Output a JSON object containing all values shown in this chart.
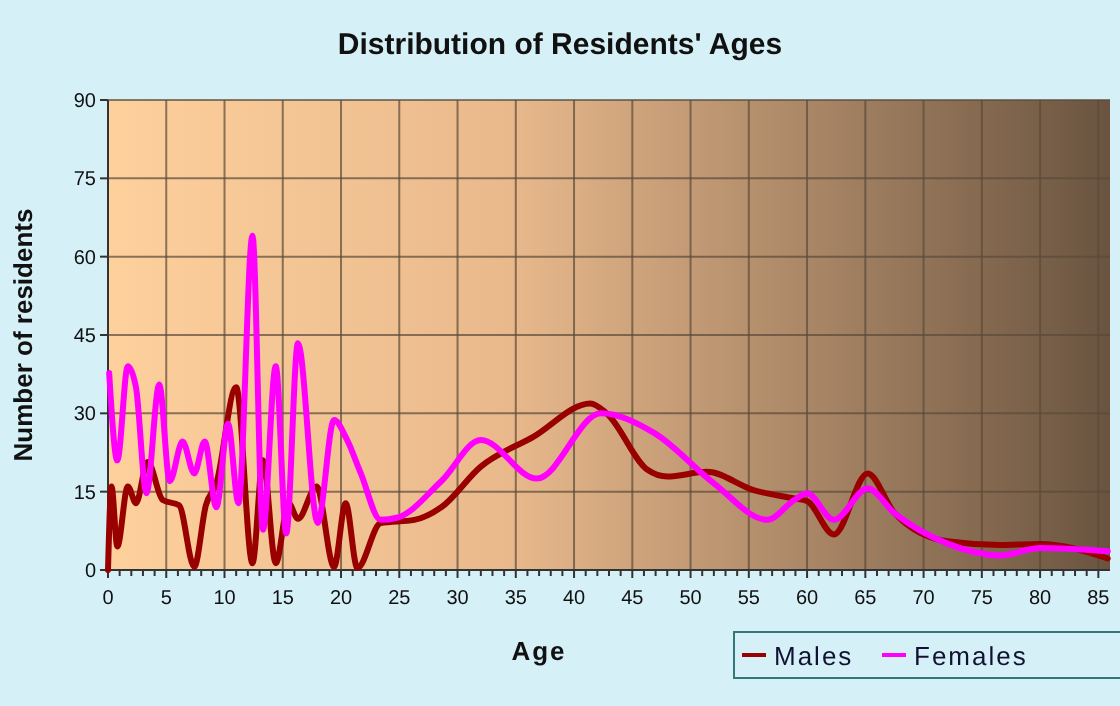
{
  "chart_data": {
    "type": "line",
    "title": "Distribution of Residents' Ages",
    "xlabel": "Age",
    "ylabel": "Number of residents",
    "xlim": [
      0,
      86
    ],
    "xticks": [
      0,
      {
        "value": 1,
        "label": null
      },
      {
        "value": 2,
        "label": null
      },
      {
        "value": 3,
        "label": null
      },
      {
        "value": 4,
        "label": null
      },
      5,
      {
        "value": 6,
        "label": null
      },
      {
        "value": 7,
        "label": null
      },
      {
        "value": 8,
        "label": null
      },
      {
        "value": 9,
        "label": null
      },
      10,
      {
        "value": 11,
        "label": null
      },
      {
        "value": 12,
        "label": null
      },
      {
        "value": 13,
        "label": null
      },
      {
        "value": 14,
        "label": null
      },
      15,
      {
        "value": 16,
        "label": null
      },
      {
        "value": 17,
        "label": null
      },
      {
        "value": 18,
        "label": null
      },
      {
        "value": 19,
        "label": null
      },
      20,
      {
        "value": 21,
        "label": null
      },
      {
        "value": 22,
        "label": null
      },
      {
        "value": 23,
        "label": null
      },
      {
        "value": 24,
        "label": null
      },
      25,
      {
        "value": 26,
        "label": null
      },
      {
        "value": 27,
        "label": null
      },
      {
        "value": 28,
        "label": null
      },
      {
        "value": 29,
        "label": null
      },
      30,
      {
        "value": 31,
        "label": null
      },
      {
        "value": 32,
        "label": null
      },
      {
        "value": 33,
        "label": null
      },
      {
        "value": 34,
        "label": null
      },
      35,
      {
        "value": 36,
        "label": null
      },
      {
        "value": 37,
        "label": null
      },
      {
        "value": 38,
        "label": null
      },
      {
        "value": 39,
        "label": null
      },
      40,
      {
        "value": 41,
        "label": null
      },
      {
        "value": 42,
        "label": null
      },
      {
        "value": 43,
        "label": null
      },
      {
        "value": 44,
        "label": null
      },
      45,
      {
        "value": 46,
        "label": null
      },
      {
        "value": 47,
        "label": null
      },
      {
        "value": 48,
        "label": null
      },
      {
        "value": 49,
        "label": null
      },
      50,
      {
        "value": 51,
        "label": null
      },
      {
        "value": 52,
        "label": null
      },
      {
        "value": 53,
        "label": null
      },
      {
        "value": 54,
        "label": null
      },
      55,
      {
        "value": 56,
        "label": null
      },
      {
        "value": 57,
        "label": null
      },
      {
        "value": 58,
        "label": null
      },
      {
        "value": 59,
        "label": null
      },
      60,
      {
        "value": 61,
        "label": null
      },
      {
        "value": 62,
        "label": null
      },
      {
        "value": 63,
        "label": null
      },
      {
        "value": 64,
        "label": null
      },
      65,
      {
        "value": 66,
        "label": null
      },
      {
        "value": 67,
        "label": null
      },
      {
        "value": 68,
        "label": null
      },
      {
        "value": 69,
        "label": null
      },
      70,
      {
        "value": 71,
        "label": null
      },
      {
        "value": 72,
        "label": null
      },
      {
        "value": 73,
        "label": null
      },
      {
        "value": 74,
        "label": null
      },
      75,
      {
        "value": 76,
        "label": null
      },
      {
        "value": 77,
        "label": null
      },
      {
        "value": 78,
        "label": null
      },
      {
        "value": 79,
        "label": null
      },
      80,
      {
        "value": 81,
        "label": null
      },
      {
        "value": 82,
        "label": null
      },
      {
        "value": 83,
        "label": null
      },
      {
        "value": 84,
        "label": null
      },
      85
    ],
    "ylim": [
      0,
      90
    ],
    "yticks": [
      0,
      15,
      30,
      45,
      60,
      75,
      90
    ],
    "grid": true,
    "legend": "bottom right",
    "marker": "none",
    "line_style": "solid",
    "series": [
      {
        "name": "Males",
        "color": "#990000",
        "x": [
          0,
          0.3,
          0.8,
          1.7,
          2.4,
          3.4,
          4.7,
          6.1,
          7.4,
          8.4,
          9.3,
          11,
          12.4,
          13.3,
          14.4,
          15.5,
          16.3,
          17.9,
          19.4,
          20.4,
          21.4,
          23.4,
          26.3,
          28.6,
          32,
          36.5,
          41.4,
          42.8,
          46.3,
          48,
          51.4,
          55.4,
          58.9,
          60,
          62.3,
          65.2,
          67.5,
          72,
          76.6,
          80,
          85.8
        ],
        "values": [
          0,
          16,
          4.5,
          16,
          12.8,
          20.7,
          13.4,
          12.4,
          0.6,
          12.4,
          16.6,
          35,
          1.3,
          21,
          1.3,
          12.8,
          9.8,
          16,
          0.6,
          12.8,
          0.4,
          9,
          9.6,
          12,
          19.8,
          25.5,
          31.9,
          30,
          19.2,
          17.9,
          18.8,
          15.3,
          13.7,
          13.2,
          6.8,
          18.5,
          10.9,
          5.5,
          4.8,
          5,
          2.2
        ]
      },
      {
        "name": "Females",
        "color": "#ff00ff",
        "x": [
          0.1,
          0.8,
          1.7,
          2.4,
          3.3,
          4.4,
          5.3,
          6.4,
          7.4,
          8.3,
          9.3,
          10.3,
          11.2,
          12.4,
          13.3,
          14.4,
          15.3,
          16.3,
          18,
          19.4,
          20.5,
          21.7,
          23.4,
          24.8,
          28.6,
          32,
          36.8,
          42.3,
          46.9,
          52,
          56.6,
          58.9,
          60,
          62.3,
          65.2,
          67.5,
          72,
          76.6,
          80,
          85.8
        ],
        "values": [
          37.7,
          21,
          39,
          35,
          14.7,
          35.5,
          17,
          24.6,
          18.5,
          24.6,
          12,
          28,
          12.8,
          64,
          7.7,
          39,
          7,
          43.4,
          9,
          28.7,
          25,
          18.5,
          9.6,
          10,
          17,
          24.9,
          17.5,
          30,
          26.2,
          16.6,
          9.6,
          13.4,
          14.7,
          9.6,
          15.6,
          10.9,
          5.1,
          2.8,
          4.2,
          3.6
        ]
      }
    ]
  }
}
